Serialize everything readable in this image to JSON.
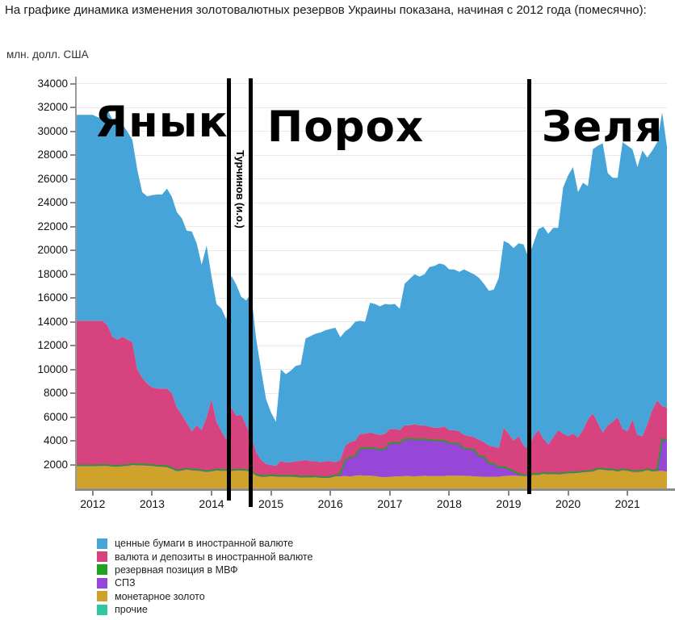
{
  "page": {
    "title": "На графике динамика изменения золотовалютных резервов Украины показана, начиная с 2012 года (помесячно):"
  },
  "chart_data": {
    "type": "area",
    "stacked": true,
    "ylabel": "млн. долл. США",
    "ylim": [
      0,
      34600
    ],
    "y_ticks": [
      2000,
      4000,
      6000,
      8000,
      10000,
      12000,
      14000,
      16000,
      18000,
      20000,
      22000,
      24000,
      26000,
      28000,
      30000,
      32000,
      34000
    ],
    "x_ticks": [
      2012,
      2013,
      2014,
      2015,
      2016,
      2017,
      2018,
      2019,
      2020,
      2021
    ],
    "x_monthly_start": "2012-01",
    "x_monthly_end": "2021-09",
    "grid": true,
    "legend_position": "bottom-left",
    "series": [
      {
        "label": "ценные бумаги в иностранной валюте",
        "color": "#47a4d9",
        "stack": 5,
        "values": [
          17300,
          17100,
          17000,
          18100,
          18250,
          18700,
          17850,
          17500,
          17000,
          16800,
          15600,
          15750,
          16150,
          16300,
          16300,
          16800,
          16500,
          16400,
          16500,
          16150,
          16800,
          15300,
          13900,
          14400,
          10300,
          9900,
          10300,
          10100,
          11100,
          11000,
          9900,
          10500,
          12000,
          9550,
          7600,
          5450,
          4450,
          3700,
          7700,
          7400,
          7700,
          8000,
          8100,
          10200,
          10500,
          10700,
          10900,
          11000,
          11100,
          11300,
          10300,
          9600,
          9600,
          10000,
          9500,
          9400,
          10900,
          10900,
          10800,
          10900,
          10450,
          10500,
          10200,
          11900,
          12300,
          12600,
          12500,
          12700,
          13400,
          13600,
          13800,
          13600,
          13500,
          13500,
          13400,
          13900,
          13800,
          13700,
          13600,
          13300,
          13000,
          13200,
          14300,
          15700,
          16000,
          16200,
          16200,
          16900,
          16100,
          16200,
          16900,
          17800,
          17700,
          17600,
          17000,
          20700,
          21900,
          22400,
          20600,
          20800,
          19600,
          22200,
          23300,
          24300,
          21200,
          20500,
          20100,
          24100,
          24000,
          22700,
          22500,
          24000,
          22400,
          21800,
          21700,
          24700,
          21900
        ]
      },
      {
        "label": "валюта и депозиты в иностранной валюте",
        "color": "#d6437f",
        "stack": 4,
        "values": [
          12150,
          12130,
          12120,
          11730,
          10830,
          10570,
          10810,
          10520,
          10250,
          7970,
          7280,
          6800,
          6520,
          6480,
          6500,
          6530,
          6280,
          5270,
          4620,
          3820,
          3200,
          3710,
          3370,
          4530,
          5980,
          4000,
          3240,
          2530,
          5260,
          4500,
          4610,
          3740,
          2920,
          1890,
          1340,
          990,
          830,
          820,
          1240,
          1130,
          1140,
          1250,
          1310,
          1380,
          1290,
          1270,
          1230,
          1340,
          1310,
          1100,
          1160,
          1220,
          1280,
          1280,
          1220,
          1250,
          1300,
          1240,
          1230,
          1280,
          1200,
          1140,
          1080,
          1160,
          1140,
          1260,
          1190,
          1160,
          1130,
          1060,
          1080,
          1190,
          1090,
          1120,
          1050,
          1160,
          1080,
          1060,
          1380,
          1220,
          1510,
          1410,
          1630,
          3300,
          2960,
          2540,
          3170,
          2480,
          2170,
          3180,
          3680,
          2890,
          2430,
          3010,
          3640,
          3300,
          3050,
          3240,
          2910,
          3460,
          4330,
          4790,
          3830,
          3040,
          3700,
          4000,
          4490,
          3390,
          3230,
          4320,
          3040,
          2890,
          3780,
          5090,
          5860,
          2740,
          2750
        ]
      },
      {
        "label": "резервная позиция в МВФ",
        "color": "#21a121",
        "stack": 3,
        "constant_value": 30,
        "edge_stroke": true
      },
      {
        "label": "СПЗ",
        "color": "#9747d8",
        "stack": 2,
        "edge_stroke": true,
        "values": [
          60,
          60,
          60,
          60,
          60,
          60,
          60,
          60,
          60,
          60,
          60,
          60,
          60,
          60,
          60,
          60,
          60,
          60,
          60,
          60,
          60,
          60,
          60,
          60,
          60,
          60,
          60,
          60,
          60,
          60,
          60,
          60,
          60,
          60,
          60,
          60,
          60,
          60,
          60,
          60,
          60,
          60,
          60,
          60,
          60,
          60,
          60,
          60,
          60,
          60,
          200,
          1300,
          1600,
          1620,
          2250,
          2250,
          2300,
          2300,
          2280,
          2350,
          2800,
          2820,
          2780,
          3080,
          3100,
          3100,
          3050,
          3040,
          3000,
          2980,
          2950,
          2930,
          2700,
          2680,
          2650,
          2250,
          2240,
          2200,
          1700,
          1680,
          1100,
          1080,
          760,
          740,
          550,
          350,
          150,
          60,
          60,
          50,
          50,
          50,
          50,
          50,
          50,
          50,
          50,
          50,
          50,
          50,
          50,
          50,
          50,
          50,
          50,
          50,
          50,
          50,
          50,
          50,
          50,
          50,
          50,
          50,
          50,
          2660,
          2600
        ]
      },
      {
        "label": "монетарное золото",
        "color": "#cfa22b",
        "stack": 1,
        "values": [
          1850,
          1870,
          1880,
          1870,
          1820,
          1830,
          1840,
          1880,
          1950,
          1930,
          1920,
          1900,
          1880,
          1820,
          1800,
          1770,
          1620,
          1430,
          1480,
          1580,
          1500,
          1490,
          1430,
          1370,
          1420,
          1500,
          1460,
          1470,
          1440,
          1500,
          1490,
          1460,
          1380,
          1060,
          960,
          960,
          1020,
          980,
          960,
          970,
          960,
          950,
          890,
          920,
          910,
          930,
          870,
          860,
          890,
          1000,
          1000,
          1040,
          980,
          1060,
          1090,
          1060,
          1060,
          1020,
          950,
          930,
          960,
          1000,
          1000,
          1020,
          1020,
          1000,
          1020,
          1060,
          1030,
          1020,
          1030,
          1040,
          1070,
          1060,
          1060,
          1050,
          1040,
          1000,
          980,
          960,
          950,
          970,
          970,
          1020,
          1050,
          1070,
          1040,
          1020,
          1030,
          1130,
          1130,
          1220,
          1180,
          1200,
          1170,
          1210,
          1260,
          1270,
          1300,
          1350,
          1380,
          1420,
          1580,
          1570,
          1510,
          1510,
          1420,
          1520,
          1480,
          1390,
          1370,
          1420,
          1530,
          1420,
          1450,
          1460,
          1410
        ]
      },
      {
        "label": "прочие",
        "color": "#2fc79f",
        "stack": 0,
        "constant_value": 10
      }
    ],
    "annotations": {
      "periods": [
        {
          "label": "Янык"
        },
        {
          "label": "Порох"
        },
        {
          "label": "Зеля"
        }
      ],
      "acting_label": "Турчинов (и.о.)",
      "dividers_count": 3
    }
  }
}
